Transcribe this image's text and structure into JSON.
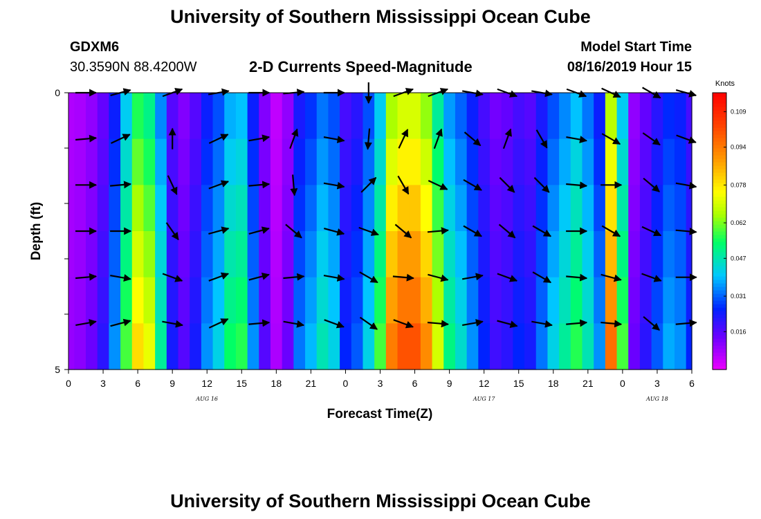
{
  "header": {
    "title": "University of Southern Mississippi Ocean Cube",
    "footer_title": "University of Southern Mississippi Ocean Cube",
    "station": "GDXM6",
    "coords": "30.3590N 88.4200W",
    "chart_title": "2-D Currents Speed-Magnitude",
    "model_label": "Model Start Time",
    "model_time": "08/16/2019 Hour 15"
  },
  "chart_data": {
    "type": "heatmap",
    "title": "2-D Currents Speed-Magnitude",
    "xlabel": "Forecast Time(Z)",
    "ylabel": "Depth (ft)",
    "x_start_hour": 0,
    "x_end_hour": 54,
    "x_tick_labels": [
      "0",
      "3",
      "6",
      "9",
      "12",
      "15",
      "18",
      "21",
      "0",
      "3",
      "6",
      "9",
      "12",
      "15",
      "18",
      "21",
      "0",
      "3",
      "6"
    ],
    "day_labels": [
      {
        "text": "AUG 16",
        "hour": 12
      },
      {
        "text": "AUG 17",
        "hour": 36
      },
      {
        "text": "AUG 18",
        "hour": 51
      }
    ],
    "y_ticks": [
      0,
      5
    ],
    "y_tick_labels": [
      "0",
      "5"
    ],
    "ylim": [
      0,
      5
    ],
    "colorbar": {
      "unit_label": "Knots",
      "range": [
        0.0,
        0.117
      ],
      "ticks": [
        0.016,
        0.031,
        0.047,
        0.062,
        0.078,
        0.094,
        0.109
      ],
      "tick_labels": [
        "0.016",
        "0.031",
        "0.047",
        "0.062",
        "0.078",
        "0.094",
        "0.109"
      ]
    },
    "depth_levels": 6,
    "speed_profile_hours": [
      0,
      1,
      2,
      3,
      4,
      5,
      6,
      7,
      8,
      9,
      10,
      11,
      12,
      13,
      14,
      15,
      16,
      17,
      18,
      19,
      20,
      21,
      22,
      23,
      24,
      25,
      26,
      27,
      28,
      29,
      30,
      31,
      32,
      33,
      34,
      35,
      36,
      37,
      38,
      39,
      40,
      41,
      42,
      43,
      44,
      45,
      46,
      47,
      48,
      49,
      50,
      51,
      52,
      53,
      54
    ],
    "speed_profile_knots": [
      0.008,
      0.009,
      0.012,
      0.018,
      0.03,
      0.05,
      0.068,
      0.062,
      0.042,
      0.02,
      0.014,
      0.02,
      0.03,
      0.036,
      0.046,
      0.048,
      0.03,
      0.014,
      0.006,
      0.012,
      0.028,
      0.033,
      0.04,
      0.036,
      0.022,
      0.026,
      0.036,
      0.05,
      0.08,
      0.086,
      0.086,
      0.078,
      0.06,
      0.044,
      0.038,
      0.03,
      0.022,
      0.016,
      0.018,
      0.022,
      0.02,
      0.028,
      0.036,
      0.042,
      0.048,
      0.04,
      0.03,
      0.082,
      0.05,
      0.012,
      0.018,
      0.026,
      0.032,
      0.03,
      0.022
    ],
    "vector_hours": [
      1.5,
      4.5,
      9,
      13,
      16.5,
      19.5,
      23,
      26,
      29,
      32,
      35,
      38,
      41,
      44,
      47,
      50.5,
      53.5
    ],
    "vector_angles_deg": [
      [
        0,
        15,
        20,
        10,
        0,
        5,
        0,
        270,
        20,
        20,
        350,
        340,
        350,
        340,
        335,
        330,
        345
      ],
      [
        5,
        25,
        90,
        25,
        10,
        70,
        350,
        265,
        65,
        70,
        320,
        70,
        300,
        350,
        330,
        325,
        340
      ],
      [
        0,
        5,
        295,
        20,
        5,
        275,
        350,
        45,
        300,
        335,
        330,
        315,
        315,
        355,
        0,
        320,
        350
      ],
      [
        0,
        0,
        305,
        15,
        15,
        320,
        345,
        340,
        320,
        5,
        330,
        320,
        330,
        0,
        330,
        335,
        355
      ],
      [
        5,
        350,
        340,
        20,
        15,
        5,
        350,
        330,
        355,
        345,
        10,
        340,
        330,
        355,
        345,
        340,
        0
      ],
      [
        10,
        15,
        350,
        25,
        5,
        350,
        340,
        325,
        340,
        355,
        10,
        345,
        350,
        5,
        355,
        320,
        5
      ]
    ]
  }
}
